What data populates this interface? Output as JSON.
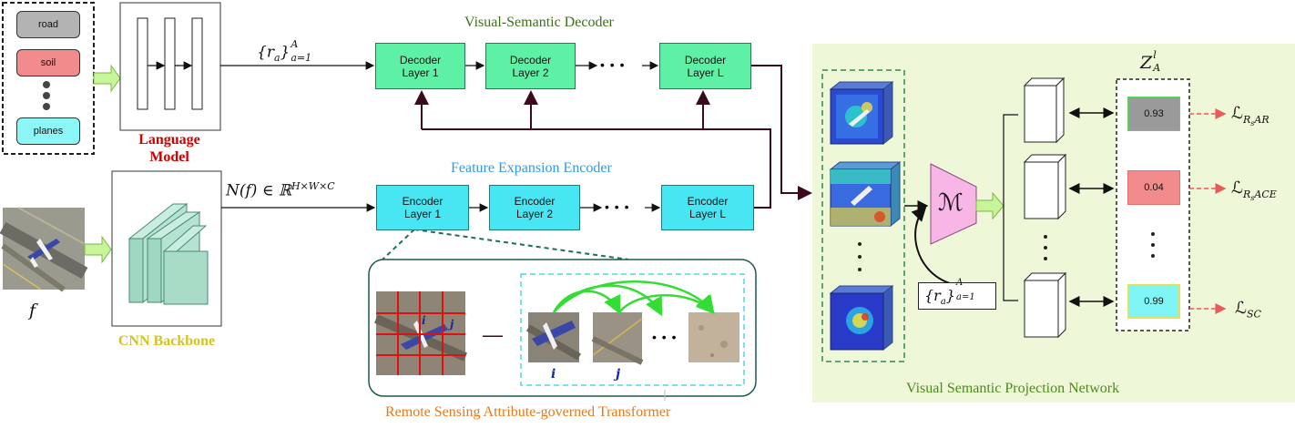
{
  "attributes": {
    "items": [
      {
        "label": "road",
        "color": "#b3b3b3"
      },
      {
        "label": "soil",
        "color": "#f28b8b"
      },
      {
        "label": "planes",
        "color": "#8df7f7"
      }
    ]
  },
  "language_model": {
    "label_line1": "Language",
    "label_line2": "Model",
    "color": "#cc0000"
  },
  "cnn_backbone": {
    "label": "CNN Backbone",
    "color": "#d4c41c"
  },
  "decoder": {
    "title": "Visual-Semantic Decoder",
    "title_color": "#3f6f1a",
    "layers": [
      {
        "line1": "Decoder",
        "line2": "Layer 1"
      },
      {
        "line1": "Decoder",
        "line2": "Layer 2"
      },
      {
        "line1": "Decoder",
        "line2": "Layer L"
      }
    ],
    "ellipsis": "• • •"
  },
  "encoder": {
    "title": "Feature Expansion Encoder",
    "title_color": "#3399e6",
    "layers": [
      {
        "line1": "Encoder",
        "line2": "Layer 1"
      },
      {
        "line1": "Encoder",
        "line2": "Layer 2"
      },
      {
        "line1": "Encoder",
        "line2": "Layer L"
      }
    ],
    "ellipsis": "• • •"
  },
  "math": {
    "ra_set": "{r",
    "ra_sub": "a",
    "ra_close": "}",
    "ra_lower": "a=1",
    "ra_upper": "A",
    "feature_map": "N(f) ∈ ℝ",
    "feature_dims": "H×W×C",
    "f_label": "f",
    "z_main": "Z",
    "z_sup": "l",
    "z_sub": "A",
    "m_label": "ℳ"
  },
  "transformer": {
    "title": "Remote Sensing Attribute-governed Transformer",
    "title_color": "#e67a1a",
    "label_i": "i",
    "label_j": "j",
    "dash": "—",
    "dots": "• • •"
  },
  "projection": {
    "title": "Visual Semantic Projection Network",
    "title_color": "#4d8a1a",
    "bg_color": "#eef8d8",
    "scores": [
      {
        "value": "0.93",
        "color": "#9a9a9a"
      },
      {
        "value": "0.04",
        "color": "#f28b8b"
      },
      {
        "value": "0.99",
        "color": "#7ff5f5"
      }
    ],
    "losses": [
      {
        "main": "ℒ",
        "sub": "R",
        "subsub": "s",
        "tail": "AR"
      },
      {
        "main": "ℒ",
        "sub": "R",
        "subsub": "s",
        "tail": "ACE"
      },
      {
        "main": "ℒ",
        "sub": "SC",
        "subsub": "",
        "tail": ""
      }
    ]
  }
}
